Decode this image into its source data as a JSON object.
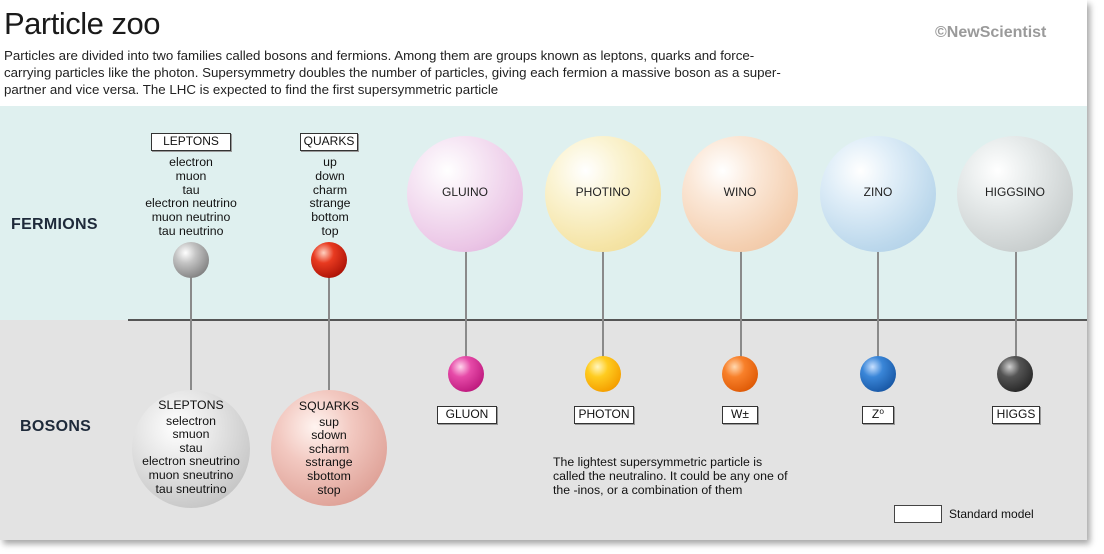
{
  "header": {
    "title": "Particle zoo",
    "credit": "©NewScientist",
    "intro": "Particles are divided into two families called bosons and fermions. Among them are groups known as leptons, quarks and force-carrying particles like the photon. Supersymmetry doubles the number of particles, giving each fermion a massive boson as a super-partner and vice versa. The LHC is expected to find the first supersymmetric particle"
  },
  "rows": {
    "fermions": "FERMIONS",
    "bosons": "BOSONS"
  },
  "leptons": {
    "label": "LEPTONS",
    "items": [
      "electron",
      "muon",
      "tau",
      "electron neutrino",
      "muon neutrino",
      "tau neutrino"
    ],
    "ball_color": "#a8a8a8"
  },
  "quarks": {
    "label": "QUARKS",
    "items": [
      "up",
      "down",
      "charm",
      "strange",
      "bottom",
      "top"
    ],
    "ball_color": "#cc2010"
  },
  "sleptons": {
    "label": "SLEPTONS",
    "items": [
      "selectron",
      "smuon",
      "stau",
      "electron sneutrino",
      "muon sneutrino",
      "tau sneutrino"
    ]
  },
  "squarks": {
    "label": "SQUARKS",
    "items": [
      "sup",
      "sdown",
      "scharm",
      "sstrange",
      "sbottom",
      "stop"
    ]
  },
  "sparticles": [
    "GLUINO",
    "PHOTINO",
    "WINO",
    "ZINO",
    "HIGGSINO"
  ],
  "bosons": [
    "GLUON",
    "PHOTON",
    "W±",
    "Z⁰",
    "HIGGS"
  ],
  "colors": {
    "gluon": "#e0309a",
    "photon": "#ffb400",
    "w": "#f26a10",
    "z": "#1e66b8",
    "higgs": "#333333"
  },
  "note": "The lightest supersymmetric particle is called the neutralino. It could be any one of the -inos, or a combination of them",
  "legend": {
    "label": "Standard model"
  }
}
